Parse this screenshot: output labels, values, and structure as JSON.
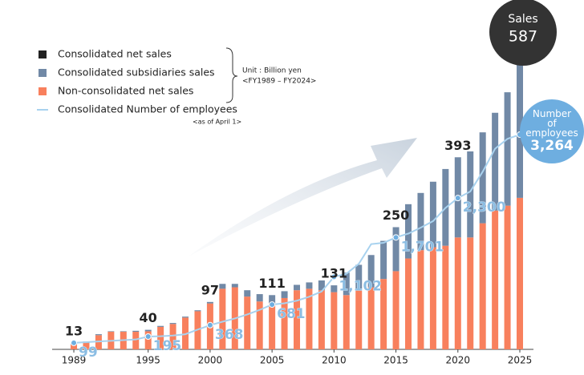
{
  "chart_data": {
    "type": "bar",
    "x": [
      1989,
      1990,
      1991,
      1992,
      1993,
      1994,
      1995,
      1996,
      1997,
      1998,
      1999,
      2000,
      2001,
      2002,
      2003,
      2004,
      2005,
      2006,
      2007,
      2008,
      2009,
      2010,
      2011,
      2012,
      2013,
      2014,
      2015,
      2016,
      2017,
      2018,
      2019,
      2020,
      2021,
      2022,
      2023,
      2024,
      2025
    ],
    "xlim": [
      1987.25,
      2026.1
    ],
    "xticks": [
      1989,
      1995,
      2000,
      2005,
      2010,
      2015,
      2020,
      2025
    ],
    "ylim": [
      0,
      600
    ],
    "y2lim": [
      0,
      4458
    ],
    "series": [
      {
        "name": "Consolidated net sales",
        "type": "text",
        "color": "#222222",
        "values": [
          13,
          null,
          null,
          null,
          null,
          null,
          40,
          null,
          null,
          null,
          null,
          97,
          null,
          null,
          null,
          null,
          111,
          null,
          null,
          null,
          null,
          131,
          null,
          null,
          null,
          null,
          250,
          null,
          null,
          null,
          null,
          393,
          null,
          null,
          null,
          null,
          587
        ]
      },
      {
        "name": "Consolidated subsidiaries sales",
        "type": "bar",
        "color": "#7189a6",
        "values": [
          3,
          3,
          2,
          1,
          1,
          2,
          3,
          2,
          2,
          2,
          2,
          3,
          10,
          7,
          13,
          15,
          16,
          14,
          11,
          13,
          20,
          14,
          46,
          49,
          66,
          78,
          90,
          111,
          117,
          134,
          157,
          164,
          176,
          186,
          200,
          232,
          277
        ]
      },
      {
        "name": "Non-consolidated net sales",
        "type": "bar",
        "color": "#f8805d",
        "values": [
          10,
          13,
          29,
          36,
          36,
          36,
          37,
          46,
          52,
          65,
          78,
          94,
          124,
          127,
          108,
          98,
          95,
          105,
          121,
          124,
          121,
          117,
          111,
          124,
          127,
          144,
          160,
          186,
          203,
          209,
          212,
          229,
          229,
          258,
          284,
          294,
          310
        ]
      },
      {
        "name": "Consolidated Number of employees",
        "type": "line",
        "axis": "y2",
        "color": "#a8d2ef",
        "values": [
          99,
          110,
          120,
          130,
          140,
          150,
          195,
          200,
          210,
          230,
          300,
          368,
          420,
          470,
          530,
          600,
          681,
          700,
          740,
          800,
          880,
          1102,
          1150,
          1300,
          1600,
          1620,
          1701,
          1760,
          1850,
          1950,
          2150,
          2300,
          2400,
          2700,
          3050,
          3200,
          3264
        ],
        "value_labels": [
          "99",
          null,
          null,
          null,
          null,
          null,
          "195",
          null,
          null,
          null,
          null,
          "368",
          null,
          null,
          null,
          null,
          "681",
          null,
          null,
          null,
          null,
          "1,102",
          null,
          null,
          null,
          null,
          "1,701",
          null,
          null,
          null,
          null,
          "2,300",
          null,
          null,
          null,
          null,
          "3,264"
        ]
      }
    ],
    "annotations": {
      "unit": "Unit : Billion yen",
      "period": "<FY1989 – FY2024>",
      "employees_date": "<as of April 1>",
      "sales_callout": "Sales",
      "employees_callout": "Number of employees"
    }
  }
}
